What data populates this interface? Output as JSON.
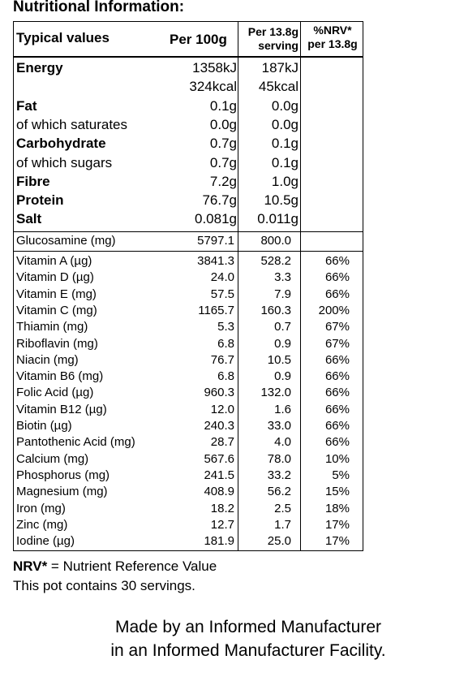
{
  "title": "Nutritional Information:",
  "header": {
    "label": "Typical values",
    "per_100g": "Per 100g",
    "per_serving_line1": "Per 13.8g",
    "per_serving_line2": "serving",
    "nrv_line1": "%NRV*",
    "nrv_line2": "per 13.8g"
  },
  "macros": [
    {
      "label": "Energy",
      "per100": "1358kJ",
      "serv": "187kJ"
    },
    {
      "label": "",
      "per100": "324kcal",
      "serv": "45kcal"
    },
    {
      "label": "Fat",
      "per100": "0.1g",
      "serv": "0.0g"
    },
    {
      "label": "of which saturates",
      "per100": "0.0g",
      "serv": "0.0g"
    },
    {
      "label": "Carbohydrate",
      "per100": "0.7g",
      "serv": "0.1g"
    },
    {
      "label": "of which sugars",
      "per100": "0.7g",
      "serv": "0.1g"
    },
    {
      "label": "Fibre",
      "per100": "7.2g",
      "serv": "1.0g"
    },
    {
      "label": "Protein",
      "per100": "76.7g",
      "serv": "10.5g"
    },
    {
      "label": "Salt",
      "per100": "0.081g",
      "serv": "0.011g"
    }
  ],
  "glucosamine": {
    "label": "Glucosamine (mg)",
    "per100": "5797.1",
    "serv": "800.0"
  },
  "vitamins": [
    {
      "label": "Vitamin A (µg)",
      "per100": "3841.3",
      "serv": "528.2",
      "nrv": "66%"
    },
    {
      "label": "Vitamin D (µg)",
      "per100": "24.0",
      "serv": "3.3",
      "nrv": "66%"
    },
    {
      "label": "Vitamin E (mg)",
      "per100": "57.5",
      "serv": "7.9",
      "nrv": "66%"
    },
    {
      "label": "Vitamin C (mg)",
      "per100": "1165.7",
      "serv": "160.3",
      "nrv": "200%"
    },
    {
      "label": "Thiamin (mg)",
      "per100": "5.3",
      "serv": "0.7",
      "nrv": "67%"
    },
    {
      "label": "Riboflavin (mg)",
      "per100": "6.8",
      "serv": "0.9",
      "nrv": "67%"
    },
    {
      "label": "Niacin (mg)",
      "per100": "76.7",
      "serv": "10.5",
      "nrv": "66%"
    },
    {
      "label": "Vitamin B6 (mg)",
      "per100": "6.8",
      "serv": "0.9",
      "nrv": "66%"
    },
    {
      "label": "Folic Acid (µg)",
      "per100": "960.3",
      "serv": "132.0",
      "nrv": "66%"
    },
    {
      "label": "Vitamin B12 (µg)",
      "per100": "12.0",
      "serv": "1.6",
      "nrv": "66%"
    },
    {
      "label": "Biotin (µg)",
      "per100": "240.3",
      "serv": "33.0",
      "nrv": "66%"
    },
    {
      "label": "Pantothenic Acid (mg)",
      "per100": "28.7",
      "serv": "4.0",
      "nrv": "66%"
    },
    {
      "label": "Calcium (mg)",
      "per100": "567.6",
      "serv": "78.0",
      "nrv": "10%"
    },
    {
      "label": "Phosphorus (mg)",
      "per100": "241.5",
      "serv": "33.2",
      "nrv": "5%"
    },
    {
      "label": "Magnesium (mg)",
      "per100": "408.9",
      "serv": "56.2",
      "nrv": "15%"
    },
    {
      "label": "Iron (mg)",
      "per100": "18.2",
      "serv": "2.5",
      "nrv": "18%"
    },
    {
      "label": "Zinc (mg)",
      "per100": "12.7",
      "serv": "1.7",
      "nrv": "17%"
    },
    {
      "label": "Iodine (µg)",
      "per100": "181.9",
      "serv": "25.0",
      "nrv": "17%"
    }
  ],
  "footer": {
    "nrv_abbr": "NRV*",
    "nrv_def": " = Nutrient Reference Value",
    "servings": "This pot contains 30 servings.",
    "maker_line1": "Made by an Informed Manufacturer",
    "maker_line2": "in an Informed Manufacturer Facility."
  }
}
